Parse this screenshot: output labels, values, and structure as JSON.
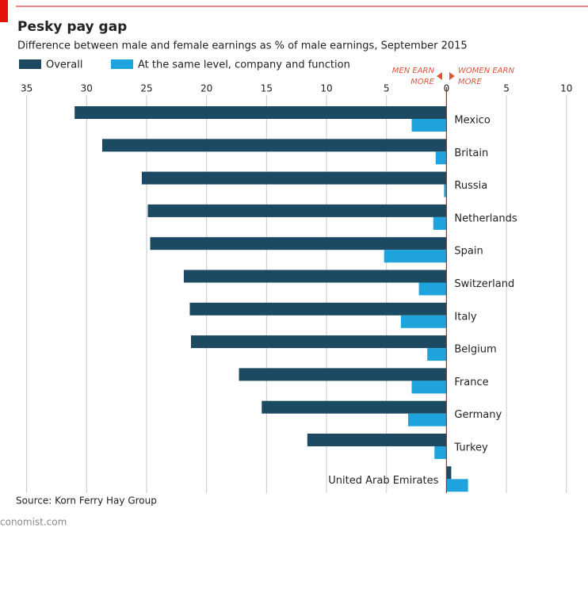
{
  "chart_data": {
    "type": "barh",
    "title": "Pesky pay gap",
    "subtitle": "Difference between male and female earnings as % of male earnings, September 2015",
    "left_annotation": [
      "MEN EARN",
      "MORE"
    ],
    "right_annotation": [
      "WOMEN EARN",
      "MORE"
    ],
    "source": "Source: Korn Ferry Hay Group",
    "footer": "conomist.com",
    "categories": [
      "Mexico",
      "Britain",
      "Russia",
      "Netherlands",
      "Spain",
      "Switzerland",
      "Italy",
      "Belgium",
      "France",
      "Germany",
      "Turkey",
      "United Arab Emirates"
    ],
    "series": [
      {
        "name": "Overall",
        "color": "#1b4a62",
        "values": [
          31.0,
          28.7,
          25.4,
          24.9,
          24.7,
          21.9,
          21.4,
          21.3,
          17.3,
          15.4,
          11.6,
          -0.4
        ]
      },
      {
        "name": "At the same level, company and function",
        "color": "#1fa3dc",
        "values": [
          2.9,
          0.9,
          0.2,
          1.1,
          5.2,
          2.3,
          3.8,
          1.6,
          2.9,
          3.2,
          1.0,
          -1.8
        ]
      }
    ],
    "xlim": [
      35.9,
      -11.8
    ],
    "xticks": [
      35,
      30,
      25,
      20,
      15,
      10,
      5,
      0,
      {
        "value": -5,
        "label": "5"
      },
      {
        "value": -10,
        "label": "10"
      }
    ],
    "grid": true
  }
}
